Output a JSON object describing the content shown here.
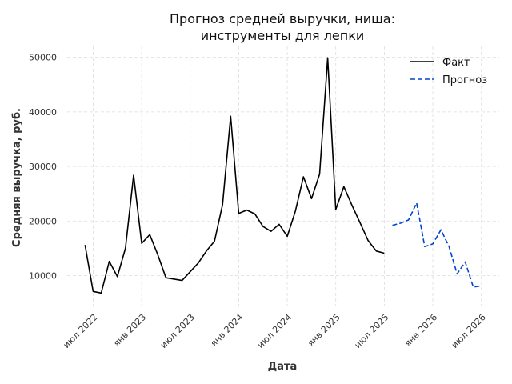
{
  "chart_data": {
    "type": "line",
    "title_line1": "Прогноз средней выручки, ниша:",
    "title_line2": "инструменты для лепки",
    "xlabel": "Дата",
    "ylabel": "Средняя выручка, руб.",
    "ylim": [
      4500,
      52000
    ],
    "y_ticks": [
      10000,
      20000,
      30000,
      40000,
      50000
    ],
    "x_ticks": [
      {
        "date": "2022-07",
        "label": "июл 2022"
      },
      {
        "date": "2023-01",
        "label": "янв 2023"
      },
      {
        "date": "2023-07",
        "label": "июл 2023"
      },
      {
        "date": "2024-01",
        "label": "янв 2024"
      },
      {
        "date": "2024-07",
        "label": "июл 2024"
      },
      {
        "date": "2025-01",
        "label": "янв 2025"
      },
      {
        "date": "2025-07",
        "label": "июл 2025"
      },
      {
        "date": "2026-01",
        "label": "янв 2026"
      },
      {
        "date": "2026-07",
        "label": "июл 2026"
      }
    ],
    "grid": true,
    "legend_position": "top-right",
    "series": [
      {
        "name": "Факт",
        "color": "#000000",
        "style": "solid",
        "points": [
          [
            "2022-06",
            15600
          ],
          [
            "2022-07",
            7100
          ],
          [
            "2022-08",
            6800
          ],
          [
            "2022-09",
            12600
          ],
          [
            "2022-10",
            9800
          ],
          [
            "2022-11",
            15000
          ],
          [
            "2022-12",
            28400
          ],
          [
            "2023-01",
            15900
          ],
          [
            "2023-02",
            17500
          ],
          [
            "2023-03",
            13800
          ],
          [
            "2023-04",
            9600
          ],
          [
            "2023-06",
            9100
          ],
          [
            "2023-08",
            12300
          ],
          [
            "2023-09",
            14500
          ],
          [
            "2023-10",
            16300
          ],
          [
            "2023-11",
            23000
          ],
          [
            "2023-12",
            39200
          ],
          [
            "2024-01",
            21400
          ],
          [
            "2024-02",
            22000
          ],
          [
            "2024-03",
            21300
          ],
          [
            "2024-04",
            19000
          ],
          [
            "2024-05",
            18100
          ],
          [
            "2024-06",
            19400
          ],
          [
            "2024-07",
            17200
          ],
          [
            "2024-08",
            21800
          ],
          [
            "2024-09",
            28100
          ],
          [
            "2024-10",
            24100
          ],
          [
            "2024-11",
            28600
          ],
          [
            "2024-12",
            49900
          ],
          [
            "2025-01",
            22100
          ],
          [
            "2025-02",
            26300
          ],
          [
            "2025-03",
            22900
          ],
          [
            "2025-04",
            19700
          ],
          [
            "2025-05",
            16400
          ],
          [
            "2025-06",
            14500
          ],
          [
            "2025-07",
            14100
          ]
        ]
      },
      {
        "name": "Прогноз",
        "color": "#0044cc",
        "style": "dashed",
        "points": [
          [
            "2025-08",
            19200
          ],
          [
            "2025-09",
            19600
          ],
          [
            "2025-10",
            20200
          ],
          [
            "2025-11",
            23300
          ],
          [
            "2025-12",
            15300
          ],
          [
            "2026-01",
            15800
          ],
          [
            "2026-02",
            18400
          ],
          [
            "2026-03",
            15300
          ],
          [
            "2026-04",
            10300
          ],
          [
            "2026-05",
            12500
          ],
          [
            "2026-06",
            7900
          ],
          [
            "2026-07",
            8100
          ]
        ]
      }
    ]
  }
}
